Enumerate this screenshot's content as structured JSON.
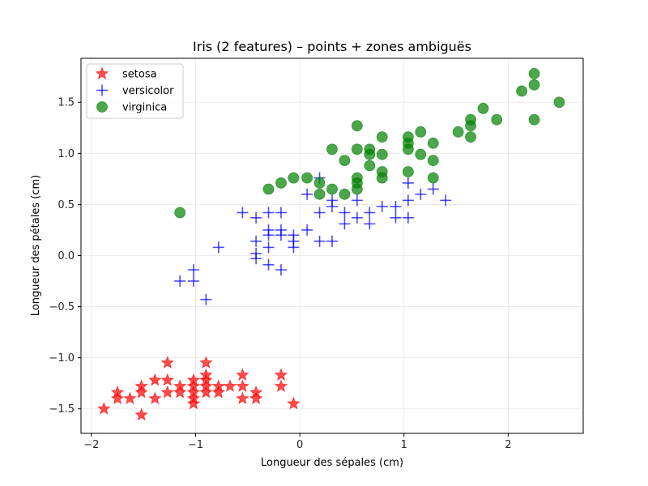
{
  "chart_data": {
    "type": "scatter",
    "title": "Iris (2 features) – points + zones ambiguës",
    "xlabel": "Longueur des sépales (cm)",
    "ylabel": "Longueur des pétales (cm)",
    "xlim": [
      -2.1,
      2.72
    ],
    "ylim": [
      -1.74,
      1.93
    ],
    "xticks": [
      -2,
      -1,
      0,
      1,
      2
    ],
    "yticks": [
      -1.5,
      -1.0,
      -0.5,
      0.0,
      0.5,
      1.0,
      1.5
    ],
    "xtick_labels": [
      "−2",
      "−1",
      "0",
      "1",
      "2"
    ],
    "ytick_labels": [
      "−1.5",
      "−1.0",
      "−0.5",
      "0.0",
      "0.5",
      "1.0",
      "1.5"
    ],
    "grid": true,
    "legend_position": "upper-left",
    "series": [
      {
        "name": "setosa",
        "marker": "star",
        "color": "#ff0000",
        "points": [
          [
            -1.88,
            -1.5
          ],
          [
            -1.75,
            -1.34
          ],
          [
            -1.75,
            -1.4
          ],
          [
            -1.63,
            -1.4
          ],
          [
            -1.52,
            -1.28
          ],
          [
            -1.52,
            -1.34
          ],
          [
            -1.52,
            -1.56
          ],
          [
            -1.39,
            -1.22
          ],
          [
            -1.39,
            -1.4
          ],
          [
            -1.27,
            -1.05
          ],
          [
            -1.27,
            -1.22
          ],
          [
            -1.27,
            -1.34
          ],
          [
            -1.15,
            -1.28
          ],
          [
            -1.15,
            -1.34
          ],
          [
            -1.02,
            -1.22
          ],
          [
            -1.02,
            -1.28
          ],
          [
            -1.02,
            -1.34
          ],
          [
            -1.02,
            -1.4
          ],
          [
            -1.02,
            -1.45
          ],
          [
            -0.9,
            -1.05
          ],
          [
            -0.9,
            -1.17
          ],
          [
            -0.9,
            -1.22
          ],
          [
            -0.9,
            -1.28
          ],
          [
            -0.9,
            -1.34
          ],
          [
            -0.78,
            -1.28
          ],
          [
            -0.78,
            -1.34
          ],
          [
            -0.67,
            -1.28
          ],
          [
            -0.55,
            -1.17
          ],
          [
            -0.55,
            -1.28
          ],
          [
            -0.55,
            -1.4
          ],
          [
            -0.42,
            -1.34
          ],
          [
            -0.42,
            -1.4
          ],
          [
            -0.18,
            -1.17
          ],
          [
            -0.18,
            -1.28
          ],
          [
            -0.06,
            -1.45
          ]
        ]
      },
      {
        "name": "versicolor",
        "marker": "plus",
        "color": "#0000ff",
        "points": [
          [
            -1.15,
            -0.25
          ],
          [
            -1.02,
            -0.14
          ],
          [
            -1.02,
            -0.25
          ],
          [
            -0.9,
            -0.43
          ],
          [
            -0.78,
            0.08
          ],
          [
            -0.55,
            0.42
          ],
          [
            -0.42,
            0.37
          ],
          [
            -0.42,
            0.14
          ],
          [
            -0.42,
            0.02
          ],
          [
            -0.42,
            -0.03
          ],
          [
            -0.3,
            0.42
          ],
          [
            -0.3,
            0.25
          ],
          [
            -0.3,
            0.2
          ],
          [
            -0.3,
            0.08
          ],
          [
            -0.3,
            -0.09
          ],
          [
            -0.18,
            0.42
          ],
          [
            -0.18,
            0.25
          ],
          [
            -0.18,
            0.2
          ],
          [
            -0.18,
            -0.14
          ],
          [
            -0.06,
            0.14
          ],
          [
            -0.06,
            0.08
          ],
          [
            -0.06,
            0.2
          ],
          [
            0.07,
            0.6
          ],
          [
            0.07,
            0.25
          ],
          [
            0.19,
            0.76
          ],
          [
            0.19,
            0.42
          ],
          [
            0.19,
            0.14
          ],
          [
            0.31,
            0.54
          ],
          [
            0.31,
            0.48
          ],
          [
            0.31,
            0.14
          ],
          [
            0.43,
            0.42
          ],
          [
            0.43,
            0.31
          ],
          [
            0.55,
            0.54
          ],
          [
            0.55,
            0.37
          ],
          [
            0.67,
            0.42
          ],
          [
            0.67,
            0.31
          ],
          [
            0.79,
            0.48
          ],
          [
            0.92,
            0.48
          ],
          [
            0.92,
            0.37
          ],
          [
            1.04,
            0.71
          ],
          [
            1.04,
            0.54
          ],
          [
            1.04,
            0.37
          ],
          [
            1.16,
            0.6
          ],
          [
            1.28,
            0.65
          ],
          [
            1.4,
            0.54
          ]
        ]
      },
      {
        "name": "virginica",
        "marker": "circle",
        "color": "#008000",
        "points": [
          [
            -1.15,
            0.42
          ],
          [
            -0.3,
            0.65
          ],
          [
            -0.18,
            0.71
          ],
          [
            -0.06,
            0.76
          ],
          [
            0.07,
            0.76
          ],
          [
            0.19,
            0.71
          ],
          [
            0.19,
            0.6
          ],
          [
            0.31,
            1.04
          ],
          [
            0.31,
            0.65
          ],
          [
            0.43,
            0.93
          ],
          [
            0.43,
            0.6
          ],
          [
            0.55,
            1.27
          ],
          [
            0.55,
            1.04
          ],
          [
            0.55,
            0.76
          ],
          [
            0.55,
            0.71
          ],
          [
            0.55,
            0.65
          ],
          [
            0.67,
            1.04
          ],
          [
            0.67,
            0.99
          ],
          [
            0.67,
            0.88
          ],
          [
            0.79,
            1.16
          ],
          [
            0.79,
            0.99
          ],
          [
            0.79,
            0.82
          ],
          [
            0.79,
            0.76
          ],
          [
            1.04,
            1.16
          ],
          [
            1.04,
            1.1
          ],
          [
            1.04,
            1.04
          ],
          [
            1.04,
            0.82
          ],
          [
            1.16,
            1.21
          ],
          [
            1.16,
            0.99
          ],
          [
            1.28,
            1.1
          ],
          [
            1.28,
            0.93
          ],
          [
            1.28,
            0.76
          ],
          [
            1.52,
            1.21
          ],
          [
            1.64,
            1.33
          ],
          [
            1.64,
            1.27
          ],
          [
            1.64,
            1.16
          ],
          [
            1.76,
            1.44
          ],
          [
            1.89,
            1.33
          ],
          [
            2.13,
            1.61
          ],
          [
            2.25,
            1.78
          ],
          [
            2.25,
            1.67
          ],
          [
            2.25,
            1.33
          ],
          [
            2.49,
            1.5
          ]
        ]
      }
    ]
  }
}
